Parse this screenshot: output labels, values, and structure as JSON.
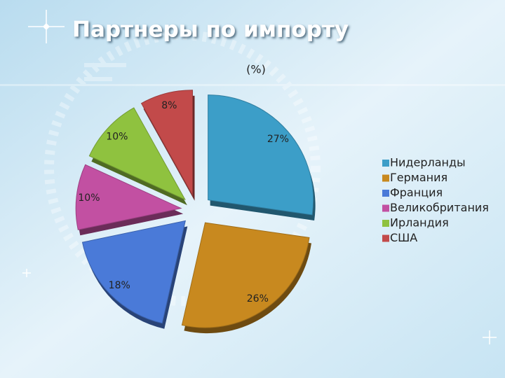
{
  "chart_data": {
    "type": "pie",
    "title": "Партнеры по импорту",
    "subtitle": "(%)",
    "categories": [
      "Нидерланды",
      "Германия",
      "Франция",
      "Великобритания",
      "Ирландия",
      "США"
    ],
    "values": [
      27,
      26,
      18,
      10,
      10,
      8
    ],
    "value_labels": [
      "27%",
      "26%",
      "18%",
      "10%",
      "10%",
      "8%"
    ],
    "colors": [
      "#3c9ec8",
      "#c8891f",
      "#4a7ad8",
      "#c250a2",
      "#8fc23f",
      "#c24a4a"
    ],
    "legend": "right"
  }
}
